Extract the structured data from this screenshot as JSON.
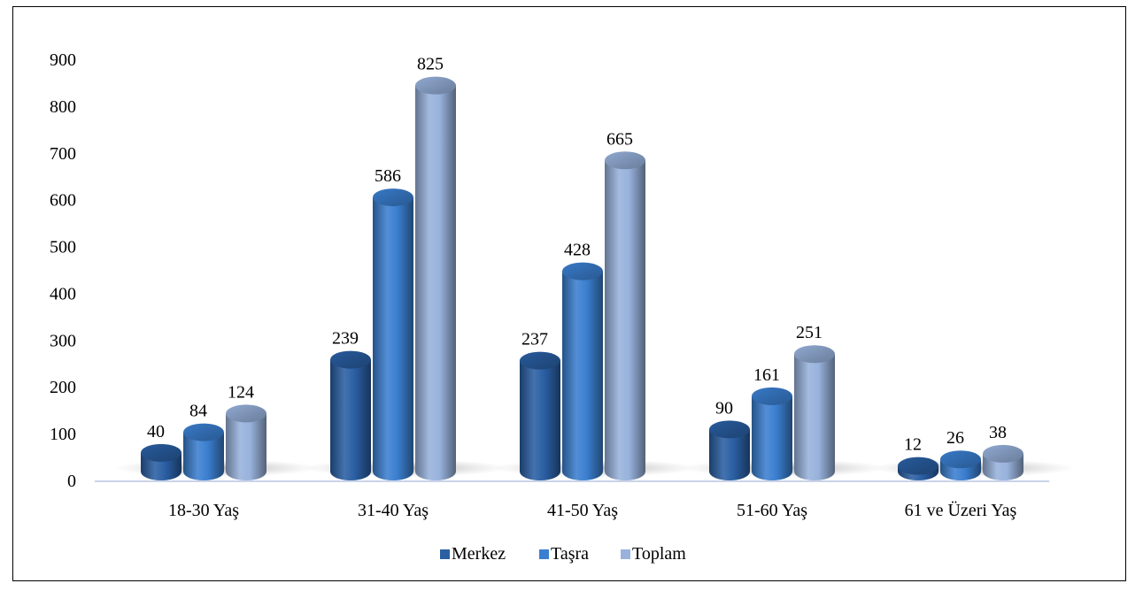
{
  "chart_data": {
    "type": "bar",
    "title": "",
    "xlabel": "",
    "ylabel": "",
    "categories": [
      "18-30 Yaş",
      "31-40 Yaş",
      "41-50 Yaş",
      "51-60 Yaş",
      "61 ve Üzeri Yaş"
    ],
    "series": [
      {
        "name": "Merkez",
        "values": [
          40,
          239,
          237,
          90,
          12
        ],
        "color": "#2a5fa3"
      },
      {
        "name": "Taşra",
        "values": [
          84,
          586,
          428,
          161,
          26
        ],
        "color": "#3b7fd0"
      },
      {
        "name": "Toplam",
        "values": [
          124,
          825,
          665,
          251,
          38
        ],
        "color": "#98b2dc"
      }
    ],
    "ylim": [
      0,
      900
    ],
    "yticks": [
      0,
      100,
      200,
      300,
      400,
      500,
      600,
      700,
      800,
      900
    ],
    "grid": false,
    "legend_position": "bottom",
    "style": "3d-cylinder"
  }
}
